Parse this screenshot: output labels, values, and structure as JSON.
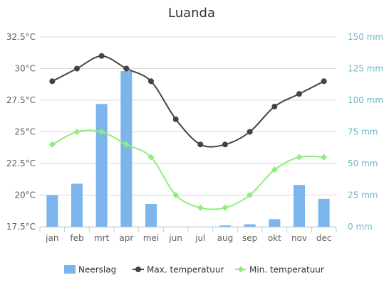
{
  "chart_data": {
    "type": "bar+line",
    "title": "Luanda",
    "categories": [
      "jan",
      "feb",
      "mrt",
      "apr",
      "mei",
      "jun",
      "jul",
      "aug",
      "sep",
      "okt",
      "nov",
      "dec"
    ],
    "left_axis": {
      "ylim": [
        17.5,
        32.5
      ],
      "ticks": [
        "17.5°C",
        "20°C",
        "22.5°C",
        "25°C",
        "27.5°C",
        "30°C",
        "32.5°C"
      ],
      "tick_values": [
        17.5,
        20,
        22.5,
        25,
        27.5,
        30,
        32.5
      ]
    },
    "right_axis": {
      "ylim": [
        0,
        150
      ],
      "ticks": [
        "0 mm",
        "25 mm",
        "50 mm",
        "75 mm",
        "100 mm",
        "125 mm",
        "150 mm"
      ],
      "tick_values": [
        0,
        25,
        50,
        75,
        100,
        125,
        150
      ]
    },
    "series": [
      {
        "name": "Neerslag",
        "type": "bar",
        "axis": "right",
        "color": "#7cb5ec",
        "values": [
          25,
          34,
          97,
          123,
          18,
          0,
          0,
          1,
          2,
          6,
          33,
          22
        ]
      },
      {
        "name": "Max. temperatuur",
        "type": "line",
        "axis": "left",
        "color": "#434348",
        "marker": "circle",
        "values": [
          29,
          30,
          31,
          30,
          29,
          26,
          24,
          24,
          25,
          27,
          28,
          29
        ]
      },
      {
        "name": "Min. temperatuur",
        "type": "line",
        "axis": "left",
        "color": "#90ed7d",
        "marker": "diamond",
        "values": [
          24,
          25,
          25,
          24,
          23,
          20,
          19,
          19,
          20,
          22,
          23,
          23
        ]
      }
    ],
    "grid": true,
    "legend_placement": "bottom"
  }
}
